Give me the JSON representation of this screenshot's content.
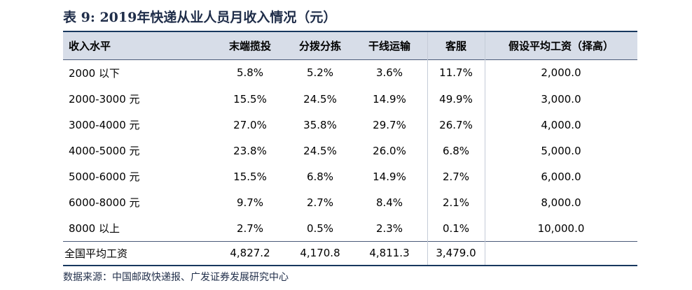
{
  "title": "表 9:  2019年快递从业人员月收入情况（元）",
  "table": {
    "headers": [
      "收入水平",
      "末端揽投",
      "分拨分拣",
      "干线运输",
      "客服",
      "假设平均工资（择高）"
    ],
    "rows": [
      [
        "2000 以下",
        "5.8%",
        "5.2%",
        "3.6%",
        "11.7%",
        "2,000.0"
      ],
      [
        "2000-3000 元",
        "15.5%",
        "24.5%",
        "14.9%",
        "49.9%",
        "3,000.0"
      ],
      [
        "3000-4000 元",
        "27.0%",
        "35.8%",
        "29.7%",
        "26.7%",
        "4,000.0"
      ],
      [
        "4000-5000 元",
        "23.8%",
        "24.5%",
        "26.0%",
        "6.8%",
        "5,000.0"
      ],
      [
        "5000-6000 元",
        "15.5%",
        "6.8%",
        "14.9%",
        "2.7%",
        "6,000.0"
      ],
      [
        "6000-8000 元",
        "9.7%",
        "2.7%",
        "8.4%",
        "2.1%",
        "8,000.0"
      ],
      [
        "8000 以上",
        "2.7%",
        "0.5%",
        "2.3%",
        "0.1%",
        "10,000.0"
      ]
    ],
    "summary": [
      "全国平均工资",
      "4,827.2",
      "4,170.8",
      "4,811.3",
      "3,479.0",
      ""
    ]
  },
  "source": "数据来源：中国邮政快递报、广发证券发展研究中心"
}
